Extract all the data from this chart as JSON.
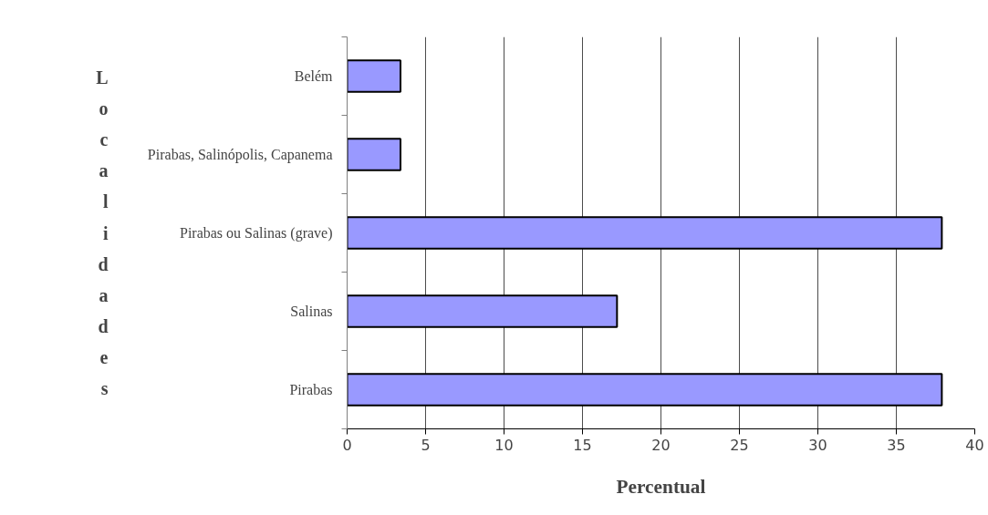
{
  "chart_data": {
    "type": "bar",
    "orientation": "horizontal",
    "xlabel": "Percentual",
    "ylabel": "Localidades",
    "categories": [
      "Belém",
      "Pirabas, Salinópolis, Capanema",
      "Pirabas ou Salinas (grave)",
      "Salinas",
      "Pirabas"
    ],
    "values": [
      3.4,
      3.4,
      37.9,
      17.2,
      37.9
    ],
    "color": "#9999ff",
    "xlim": [
      0,
      40
    ],
    "xticks": [
      0,
      5,
      10,
      15,
      20,
      25,
      30,
      35,
      40
    ],
    "grid": "x",
    "legend": false
  }
}
